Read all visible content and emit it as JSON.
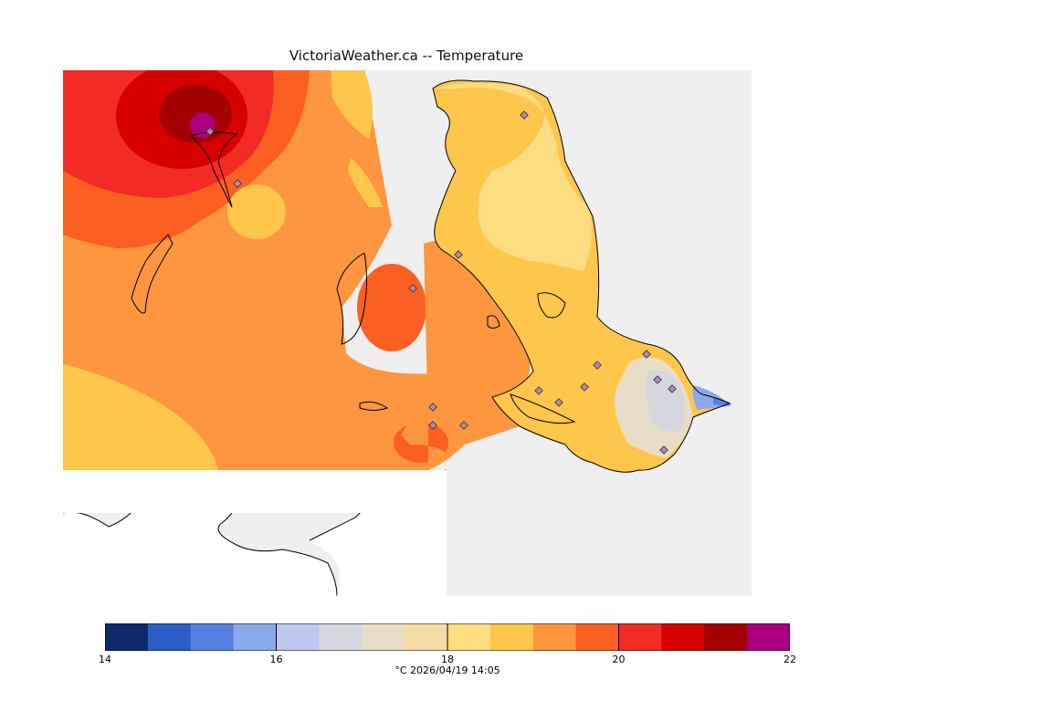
{
  "map": {
    "title": "VictoriaWeather.ca -- Temperature"
  },
  "colorbar": {
    "colors": [
      "#0c2a6b",
      "#2c5ec8",
      "#557fe0",
      "#8aa9ec",
      "#bdc8f0",
      "#d5d7df",
      "#e8dec8",
      "#f5dca3",
      "#fedd80",
      "#fec64a",
      "#fd963f",
      "#fc5f22",
      "#f22b25",
      "#d70000",
      "#a50000",
      "#aa0080"
    ],
    "min": 14,
    "max": 22,
    "ticks": [
      "14",
      "16",
      "18",
      "20",
      "22"
    ],
    "tick_values": [
      14,
      16,
      18,
      20,
      22
    ]
  },
  "footer": {
    "units_time": "°C  2026/04/19 14:05"
  }
}
